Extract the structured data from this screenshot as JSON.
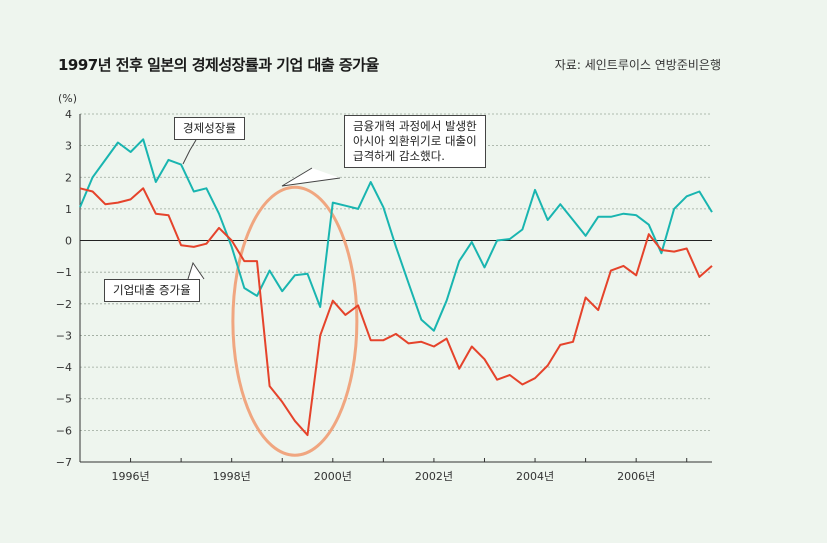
{
  "title": "1997년 전후 일본의 경제성장률과 기업 대출 증가율",
  "source": "자료: 세인트루이스 연방준비은행",
  "unit": "(%)",
  "callouts": {
    "growth": "경제성장률",
    "loan": "기업대출 증가율",
    "note_lines": [
      "금융개혁 과정에서 발생한",
      "아시아 외환위기로 대출이",
      "급격하게 감소했다."
    ]
  },
  "colors": {
    "growth": "#19b5b0",
    "loan": "#e5432b",
    "ellipse": "#f0a680",
    "background": "#eef5ee"
  },
  "chart_data": {
    "type": "line",
    "ylim": [
      -7,
      4
    ],
    "yticks": [
      4,
      3,
      2,
      1,
      0,
      -1,
      -2,
      -3,
      -4,
      -5,
      -6,
      -7
    ],
    "ytick_labels": [
      "4",
      "3",
      "2",
      "1",
      "0",
      "−1",
      "−2",
      "−3",
      "−4",
      "−5",
      "−6",
      "−7"
    ],
    "xlim": [
      1995.0,
      2007.5
    ],
    "xticks": [
      1996,
      1998,
      2000,
      2002,
      2004,
      2006
    ],
    "xtick_labels": [
      "1996년",
      "1998년",
      "2000년",
      "2002년",
      "2004년",
      "2006년"
    ],
    "grid": true,
    "series": [
      {
        "name": "경제성장률",
        "color": "#19b5b0",
        "x": [
          1995.0,
          1995.25,
          1995.5,
          1995.75,
          1996.0,
          1996.25,
          1996.5,
          1996.75,
          1997.0,
          1997.25,
          1997.5,
          1997.75,
          1998.0,
          1998.25,
          1998.5,
          1998.75,
          1999.0,
          1999.25,
          1999.5,
          1999.75,
          2000.0,
          2000.25,
          2000.5,
          2000.75,
          2001.0,
          2001.25,
          2001.5,
          2001.75,
          2002.0,
          2002.25,
          2002.5,
          2002.75,
          2003.0,
          2003.25,
          2003.5,
          2003.75,
          2004.0,
          2004.25,
          2004.5,
          2004.75,
          2005.0,
          2005.25,
          2005.5,
          2005.75,
          2006.0,
          2006.25,
          2006.5,
          2006.75,
          2007.0,
          2007.25,
          2007.5
        ],
        "values": [
          1.05,
          2.0,
          2.55,
          3.1,
          2.8,
          3.2,
          1.85,
          2.55,
          2.4,
          1.55,
          1.65,
          0.85,
          -0.2,
          -1.5,
          -1.75,
          -0.95,
          -1.6,
          -1.1,
          -1.05,
          -2.1,
          1.2,
          1.1,
          1.0,
          1.85,
          1.05,
          -0.2,
          -1.35,
          -2.5,
          -2.85,
          -1.9,
          -0.65,
          -0.05,
          -0.85,
          0.0,
          0.05,
          0.35,
          1.6,
          0.65,
          1.15,
          0.65,
          0.15,
          0.75,
          0.75,
          0.85,
          0.8,
          0.5,
          -0.4,
          1.0,
          1.4,
          1.55,
          0.9
        ]
      },
      {
        "name": "기업대출 증가율",
        "color": "#e5432b",
        "x": [
          1995.0,
          1995.25,
          1995.5,
          1995.75,
          1996.0,
          1996.25,
          1996.5,
          1996.75,
          1997.0,
          1997.25,
          1997.5,
          1997.75,
          1998.0,
          1998.25,
          1998.5,
          1998.75,
          1999.0,
          1999.25,
          1999.5,
          1999.75,
          2000.0,
          2000.25,
          2000.5,
          2000.75,
          2001.0,
          2001.25,
          2001.5,
          2001.75,
          2002.0,
          2002.25,
          2002.5,
          2002.75,
          2003.0,
          2003.25,
          2003.5,
          2003.75,
          2004.0,
          2004.25,
          2004.5,
          2004.75,
          2005.0,
          2005.25,
          2005.5,
          2005.75,
          2006.0,
          2006.25,
          2006.5,
          2006.75,
          2007.0,
          2007.25,
          2007.5
        ],
        "values": [
          1.65,
          1.55,
          1.15,
          1.2,
          1.3,
          1.65,
          0.85,
          0.8,
          -0.15,
          -0.2,
          -0.1,
          0.4,
          0.0,
          -0.65,
          -0.65,
          -4.6,
          -5.1,
          -5.7,
          -6.15,
          -3.0,
          -1.9,
          -2.35,
          -2.05,
          -3.15,
          -3.15,
          -2.95,
          -3.25,
          -3.2,
          -3.35,
          -3.1,
          -4.05,
          -3.35,
          -3.75,
          -4.4,
          -4.25,
          -4.55,
          -4.35,
          -3.95,
          -3.3,
          -3.2,
          -1.8,
          -2.2,
          -0.95,
          -0.8,
          -1.1,
          0.2,
          -0.3,
          -0.35,
          -0.25,
          -1.15,
          -0.8
        ]
      }
    ]
  }
}
